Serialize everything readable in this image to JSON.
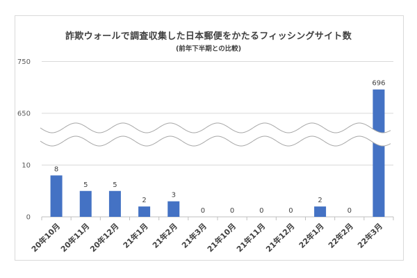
{
  "title": "詐欺ウォールで調査収集した日本郵便をかたるフィッシングサイト数",
  "subtitle": "(前年下半期との比較)",
  "chart_data": {
    "type": "bar",
    "title": "詐欺ウォールで調査収集した日本郵便をかたるフィッシングサイト数",
    "subtitle": "(前年下半期との比較)",
    "categories": [
      "20年10月",
      "20年11月",
      "20年12月",
      "21年1月",
      "21年2月",
      "21年3月",
      "21年10月",
      "21年11月",
      "21年12月",
      "22年1月",
      "22年2月",
      "22年3月"
    ],
    "values": [
      8,
      5,
      5,
      2,
      3,
      0,
      0,
      0,
      0,
      2,
      0,
      696
    ],
    "data_labels": [
      "8",
      "5",
      "5",
      "2",
      "3",
      "0",
      "0",
      "0",
      "0",
      "2",
      "0",
      "696"
    ],
    "y_ticks": [
      "0",
      "10",
      "650",
      "750"
    ],
    "axis_break": true,
    "grid": true,
    "bar_color": "#4472c4",
    "xlabel": "",
    "ylabel": ""
  }
}
